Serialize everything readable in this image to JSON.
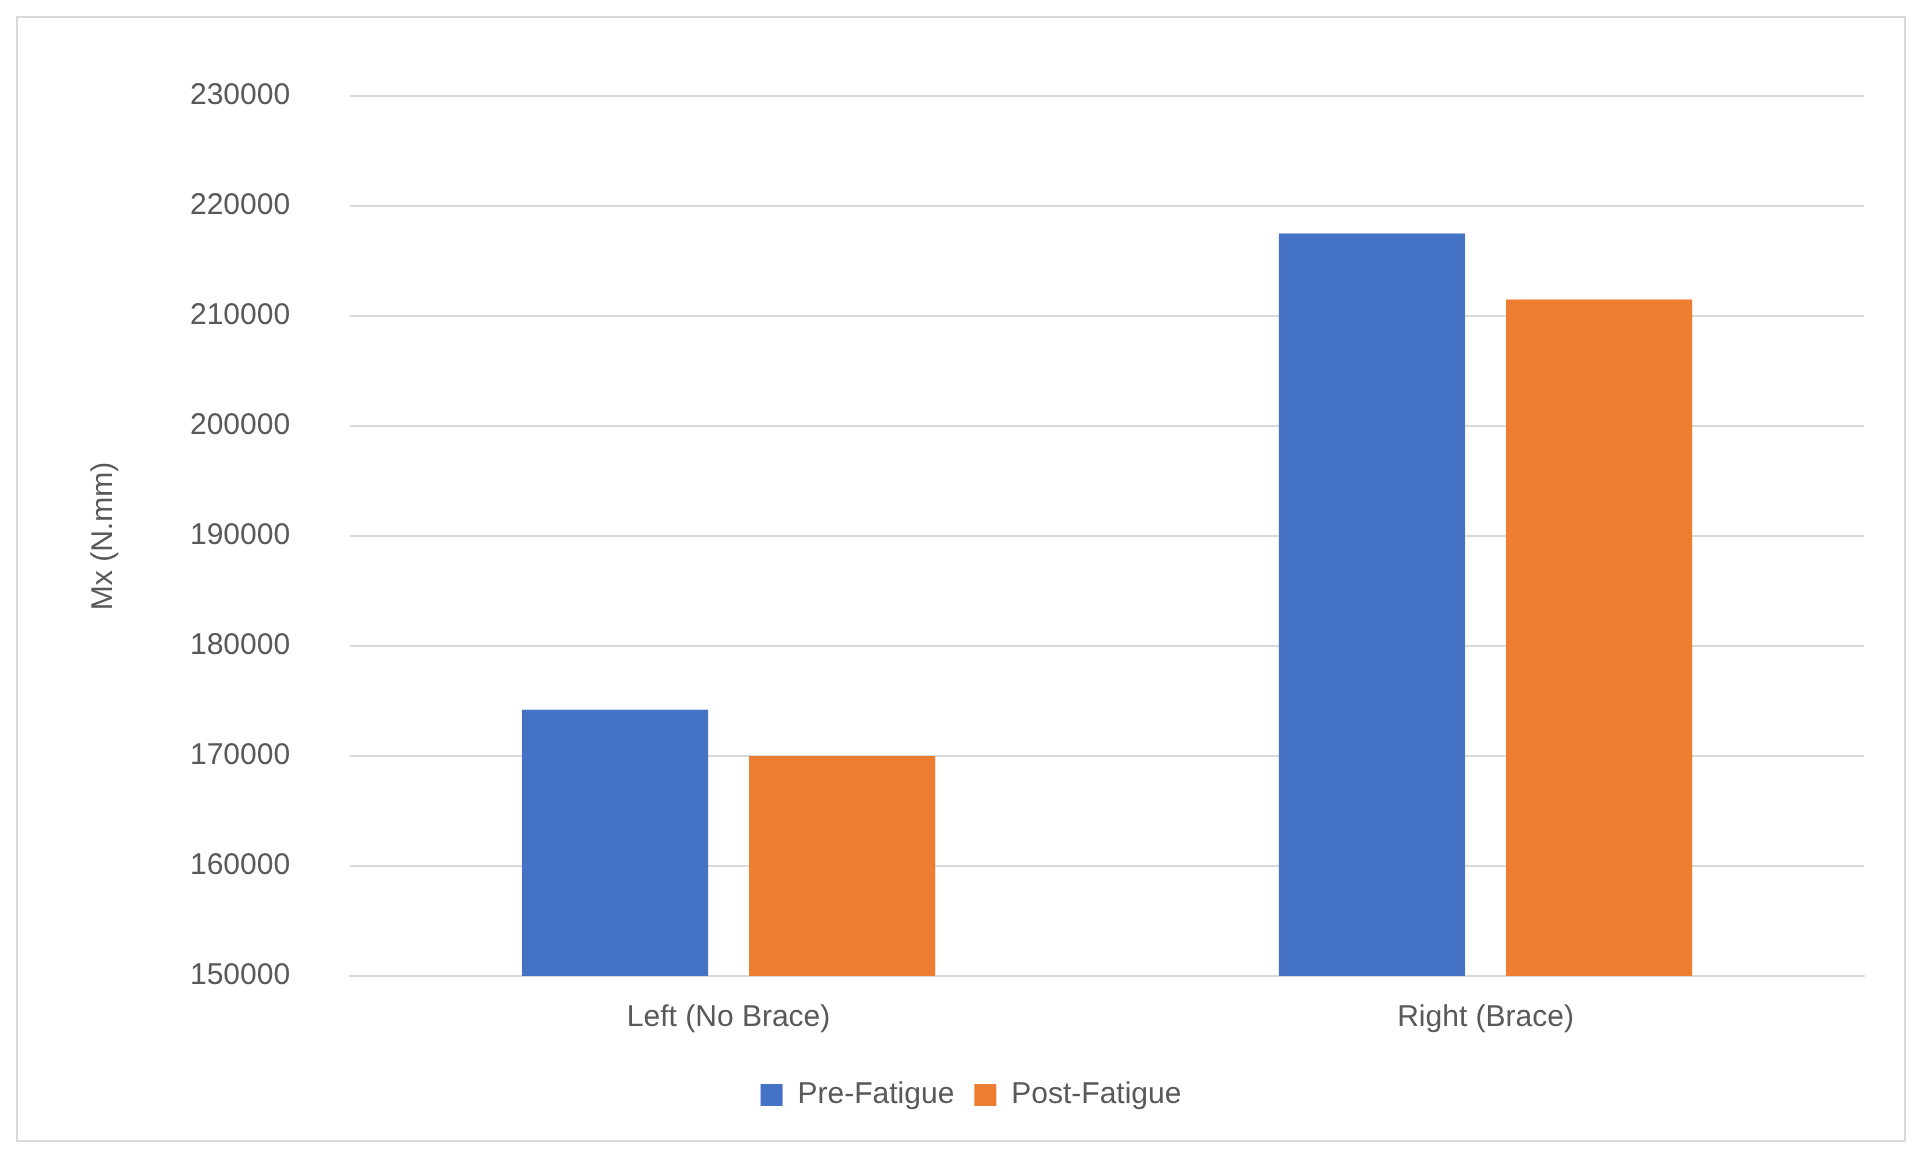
{
  "chart_data": {
    "type": "bar",
    "ylabel": "Mx (N.mm)",
    "categories": [
      "Left (No Brace)",
      "Right (Brace)"
    ],
    "series": [
      {
        "name": "Pre-Fatigue",
        "color": "#4472c4",
        "values": [
          174200,
          217500
        ]
      },
      {
        "name": "Post-Fatigue",
        "color": "#ed7d31",
        "values": [
          170000,
          211500
        ]
      }
    ],
    "ylim": [
      150000,
      230000
    ],
    "yticks": [
      150000,
      160000,
      170000,
      180000,
      190000,
      200000,
      210000,
      220000,
      230000
    ],
    "grid": "y",
    "legend": "bottom"
  }
}
